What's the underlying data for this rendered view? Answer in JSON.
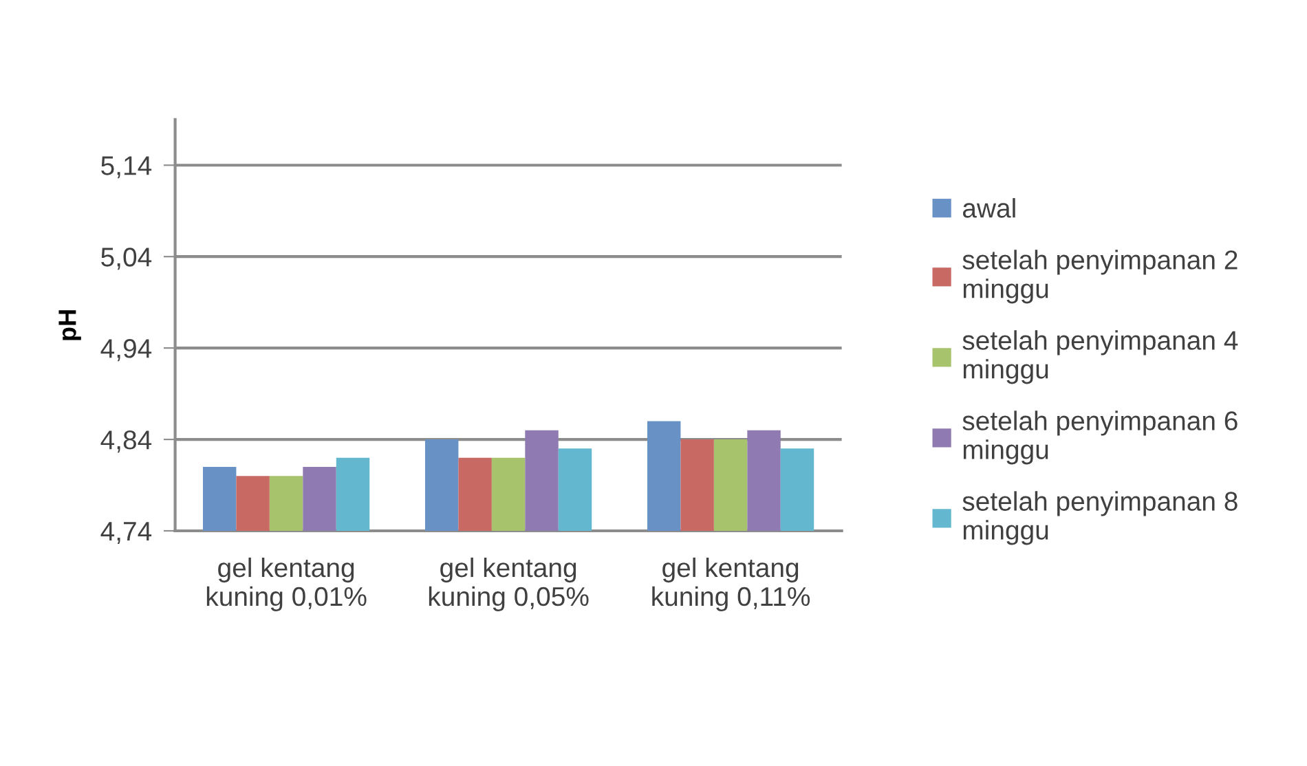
{
  "chart_data": {
    "type": "bar",
    "ylabel": "pH",
    "categories": [
      "gel kentang\nkuning 0,01%",
      "gel kentang\nkuning 0,05%",
      "gel kentang\nkuning 0,11%"
    ],
    "series": [
      {
        "name": "awal",
        "color": "#6892c6",
        "values": [
          4.81,
          4.84,
          4.86
        ]
      },
      {
        "name": "setelah penyimpanan 2\nminggu",
        "color": "#c96964",
        "values": [
          4.8,
          4.82,
          4.84
        ]
      },
      {
        "name": "setelah penyimpanan 4\nminggu",
        "color": "#a7c46c",
        "values": [
          4.8,
          4.82,
          4.84
        ]
      },
      {
        "name": "setelah penyimpanan 6\nminggu",
        "color": "#8f7ab1",
        "values": [
          4.81,
          4.85,
          4.85
        ]
      },
      {
        "name": "setelah penyimpanan 8\nminggu",
        "color": "#63b8cf",
        "values": [
          4.82,
          4.83,
          4.83
        ]
      }
    ],
    "ylim": [
      4.74,
      5.19
    ],
    "yticks": [
      {
        "value": 4.74,
        "label": "4,74"
      },
      {
        "value": 4.84,
        "label": "4,84"
      },
      {
        "value": 4.94,
        "label": "4,94"
      },
      {
        "value": 5.04,
        "label": "5,04"
      },
      {
        "value": 5.14,
        "label": "5,14"
      }
    ],
    "grid": "y",
    "legend": "right"
  }
}
